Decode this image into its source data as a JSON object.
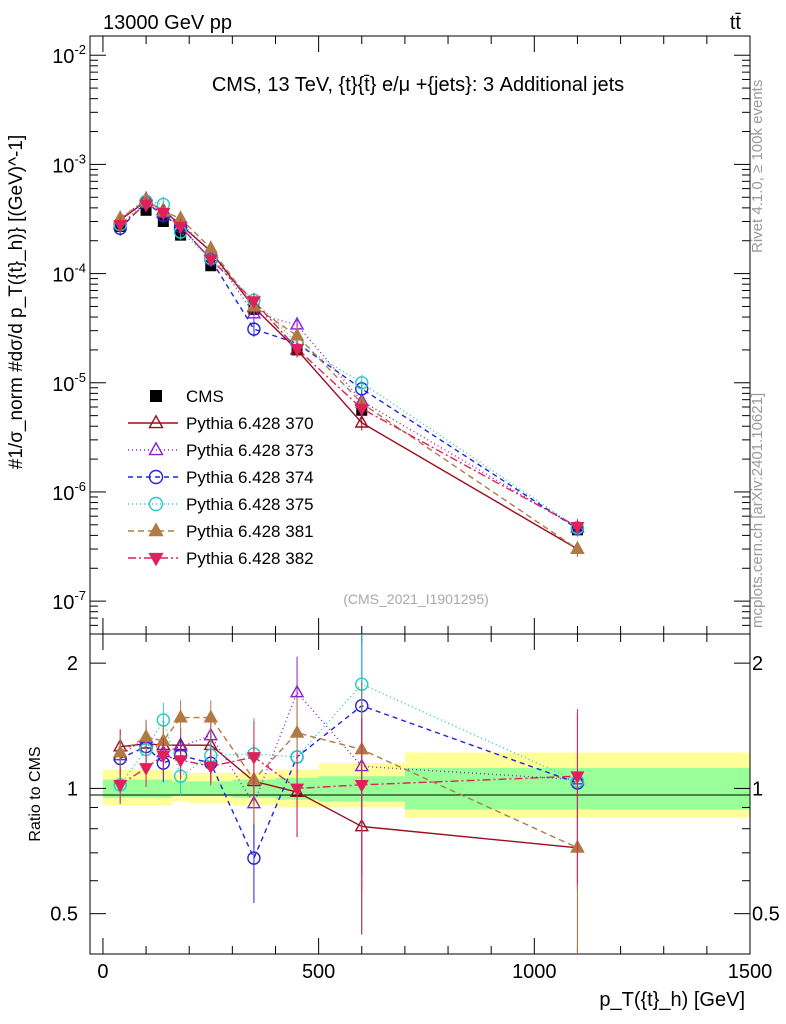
{
  "header": {
    "left": "13000 GeV pp",
    "right": "tt̄"
  },
  "side_labels": {
    "top": "Rivet 4.1.0, ≥ 100k events",
    "bottom": "mcplots.cern.ch [arXiv:2401.10621]"
  },
  "chart_data": [
    {
      "type": "line",
      "panel": "main",
      "title": "CMS, 13 TeV, {t}{t̄} e/μ +{jets}: 3 Additional jets",
      "watermark": "(CMS_2021_I1901295)",
      "ylabel": "#1/σ_norm #dσ/d p_T({t}_h)} [(GeV)^-1]",
      "xlabel": "",
      "yscale": "log",
      "xlim": [
        -30,
        1500
      ],
      "ylim": [
        5e-08,
        0.015
      ],
      "y_ticks": [
        {
          "value": 1e-07,
          "base": "10",
          "exp": "-7"
        },
        {
          "value": 1e-06,
          "base": "10",
          "exp": "-6"
        },
        {
          "value": 1e-05,
          "base": "10",
          "exp": "-5"
        },
        {
          "value": 0.0001,
          "base": "10",
          "exp": "-4"
        },
        {
          "value": 0.001,
          "base": "10",
          "exp": "-3"
        },
        {
          "value": 0.01,
          "base": "10",
          "exp": "-2"
        }
      ],
      "x": [
        40,
        100,
        140,
        180,
        250,
        350,
        450,
        600,
        1100
      ],
      "data": {
        "name": "CMS",
        "values": [
          0.00027,
          0.00038,
          0.0003,
          0.000225,
          0.000118,
          4.7e-05,
          2e-05,
          5.6e-06,
          4.5e-07
        ]
      },
      "series": [
        {
          "name": "Pythia 6.428 370",
          "color": "#9a0f1e",
          "marker": "triangle-up-open",
          "dash": "solid",
          "values": [
            0.00031,
            0.00046,
            0.00038,
            0.00028,
            0.00016,
            4.9e-05,
            2e-05,
            4.3e-06,
            3e-07
          ]
        },
        {
          "name": "Pythia 6.428 373",
          "color": "#8b1fd0",
          "marker": "triangle-up-open",
          "dash": "1,3",
          "values": [
            0.00032,
            0.00048,
            0.00036,
            0.00029,
            0.00016,
            4.3e-05,
            3.4e-05,
            6.8e-06,
            4.7e-07
          ]
        },
        {
          "name": "Pythia 6.428 374",
          "color": "#2222dd",
          "marker": "circle-open",
          "dash": "5,4",
          "values": [
            0.00026,
            0.00045,
            0.00034,
            0.00027,
            0.000135,
            3.1e-05,
            2.3e-05,
            8.8e-06,
            4.6e-07
          ]
        },
        {
          "name": "Pythia 6.428 375",
          "color": "#22ccc6",
          "marker": "circle-open",
          "dash": "1,3",
          "values": [
            0.00028,
            0.00046,
            0.00043,
            0.00024,
            0.000138,
            5.7e-05,
            2.3e-05,
            1e-05,
            4.7e-07
          ]
        },
        {
          "name": "Pythia 6.428 381",
          "color": "#b07a45",
          "marker": "triangle-up-filled",
          "dash": "6,4",
          "values": [
            0.00032,
            0.00047,
            0.00037,
            0.00032,
            0.00017,
            5e-05,
            2.7e-05,
            6.5e-06,
            3e-07
          ]
        },
        {
          "name": "Pythia 6.428 382",
          "color": "#e0205a",
          "marker": "triangle-down-filled",
          "dash": "8,3,2,3",
          "values": [
            0.00028,
            0.00043,
            0.00036,
            0.00027,
            0.000135,
            5.6e-05,
            2.05e-05,
            5.8e-06,
            4.8e-07
          ]
        }
      ]
    },
    {
      "type": "line",
      "panel": "ratio",
      "title": "",
      "ylabel": "Ratio to CMS",
      "xlabel": "p_T({t}_h) [GeV]",
      "yscale": "log",
      "xlim": [
        -30,
        1500
      ],
      "ylim": [
        0.4,
        2.35
      ],
      "y_tick_labels": [
        {
          "value": 0.5,
          "label": "0.5"
        },
        {
          "value": 1,
          "label": "1"
        },
        {
          "value": 2,
          "label": "2"
        }
      ],
      "x_tick_labels": [
        {
          "value": 0,
          "label": "0"
        },
        {
          "value": 500,
          "label": "500"
        },
        {
          "value": 1000,
          "label": "1000"
        },
        {
          "value": 1500,
          "label": "1500"
        }
      ],
      "x": [
        40,
        100,
        140,
        180,
        250,
        350,
        450,
        600,
        1100
      ],
      "uncertainty_bins": [
        {
          "x0": 0,
          "x1": 80,
          "stat": [
            0.95,
            1.05
          ],
          "total": [
            0.91,
            1.11
          ]
        },
        {
          "x0": 80,
          "x1": 120,
          "stat": [
            0.95,
            1.05
          ],
          "total": [
            0.91,
            1.11
          ]
        },
        {
          "x0": 120,
          "x1": 160,
          "stat": [
            0.95,
            1.05
          ],
          "total": [
            0.91,
            1.11
          ]
        },
        {
          "x0": 160,
          "x1": 200,
          "stat": [
            0.96,
            1.04
          ],
          "total": [
            0.93,
            1.08
          ]
        },
        {
          "x0": 200,
          "x1": 300,
          "stat": [
            0.96,
            1.04
          ],
          "total": [
            0.92,
            1.09
          ]
        },
        {
          "x0": 300,
          "x1": 400,
          "stat": [
            0.95,
            1.05
          ],
          "total": [
            0.91,
            1.09
          ]
        },
        {
          "x0": 400,
          "x1": 500,
          "stat": [
            0.94,
            1.06
          ],
          "total": [
            0.9,
            1.11
          ]
        },
        {
          "x0": 500,
          "x1": 700,
          "stat": [
            0.93,
            1.07
          ],
          "total": [
            0.9,
            1.15
          ]
        },
        {
          "x0": 700,
          "x1": 1500,
          "stat": [
            0.89,
            1.12
          ],
          "total": [
            0.85,
            1.22
          ]
        }
      ],
      "series": [
        {
          "name": "Pythia 6.428 370",
          "values": [
            1.26,
            1.28,
            1.27,
            1.27,
            1.27,
            1.04,
            0.98,
            0.81,
            0.72
          ]
        },
        {
          "name": "Pythia 6.428 373",
          "values": [
            1.2,
            1.32,
            1.22,
            1.26,
            1.34,
            0.92,
            1.7,
            1.13,
            1.05
          ]
        },
        {
          "name": "Pythia 6.428 374",
          "values": [
            1.18,
            1.26,
            1.15,
            1.2,
            1.15,
            0.68,
            1.19,
            1.58,
            1.03
          ]
        },
        {
          "name": "Pythia 6.428 375",
          "values": [
            1.02,
            1.24,
            1.46,
            1.07,
            1.2,
            1.21,
            1.19,
            1.78,
            1.04
          ]
        },
        {
          "name": "Pythia 6.428 381",
          "values": [
            1.22,
            1.33,
            1.3,
            1.48,
            1.48,
            1.05,
            1.36,
            1.24,
            0.72
          ]
        },
        {
          "name": "Pythia 6.428 382",
          "values": [
            1.02,
            1.12,
            1.2,
            1.17,
            1.13,
            1.19,
            1.0,
            1.02,
            1.07
          ]
        }
      ]
    }
  ]
}
